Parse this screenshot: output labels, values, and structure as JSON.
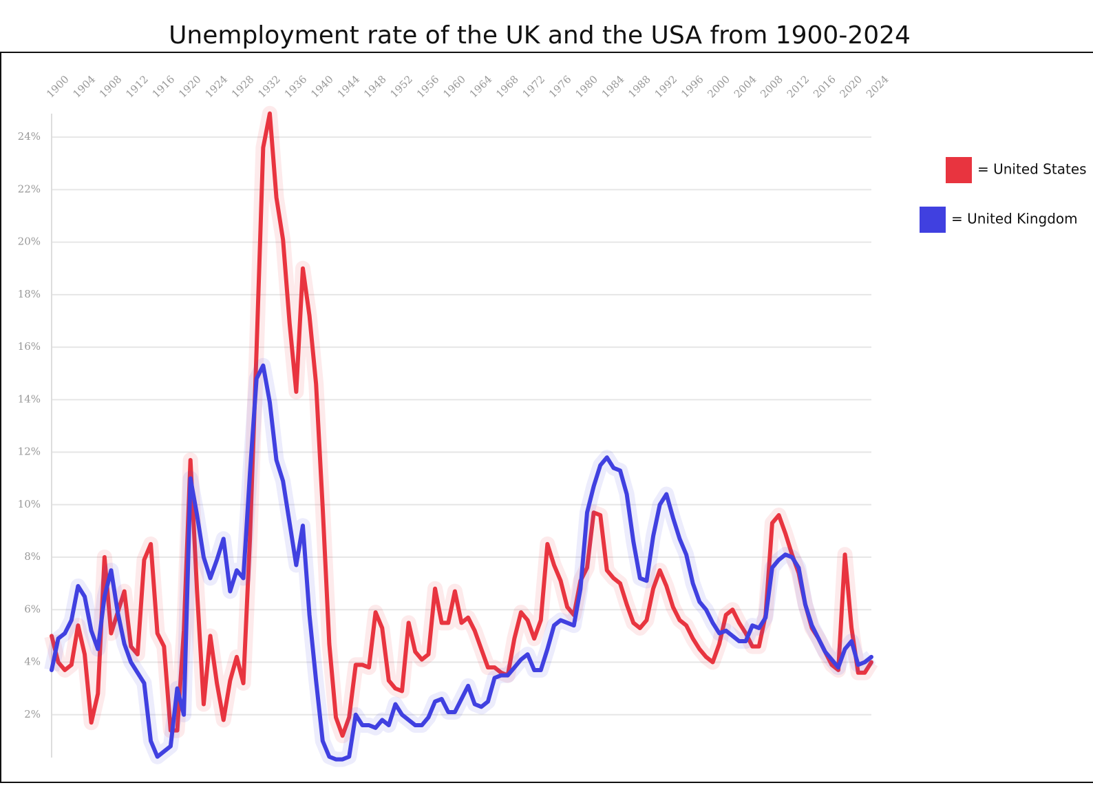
{
  "chart_data": {
    "type": "line",
    "title": "Unemployment rate of the UK and the USA from 1900-2024",
    "x": [
      1900,
      1901,
      1902,
      1903,
      1904,
      1905,
      1906,
      1907,
      1908,
      1909,
      1910,
      1911,
      1912,
      1913,
      1914,
      1915,
      1916,
      1917,
      1918,
      1919,
      1920,
      1921,
      1922,
      1923,
      1924,
      1925,
      1926,
      1927,
      1928,
      1929,
      1930,
      1931,
      1932,
      1933,
      1934,
      1935,
      1936,
      1937,
      1938,
      1939,
      1940,
      1941,
      1942,
      1943,
      1944,
      1945,
      1946,
      1947,
      1948,
      1949,
      1950,
      1951,
      1952,
      1953,
      1954,
      1955,
      1956,
      1957,
      1958,
      1959,
      1960,
      1961,
      1962,
      1963,
      1964,
      1965,
      1966,
      1967,
      1968,
      1969,
      1970,
      1971,
      1972,
      1973,
      1974,
      1975,
      1976,
      1977,
      1978,
      1979,
      1980,
      1981,
      1982,
      1983,
      1984,
      1985,
      1986,
      1987,
      1988,
      1989,
      1990,
      1991,
      1992,
      1993,
      1994,
      1995,
      1996,
      1997,
      1998,
      1999,
      2000,
      2001,
      2002,
      2003,
      2004,
      2005,
      2006,
      2007,
      2008,
      2009,
      2010,
      2011,
      2012,
      2013,
      2014,
      2015,
      2016,
      2017,
      2018,
      2019,
      2020,
      2021,
      2022,
      2023,
      2024
    ],
    "series": [
      {
        "name": "= United States",
        "color": "#e8343f",
        "values": [
          5.0,
          4.0,
          3.7,
          3.9,
          5.4,
          4.3,
          1.7,
          2.8,
          8.0,
          5.1,
          5.9,
          6.7,
          4.6,
          4.3,
          7.9,
          8.5,
          5.1,
          4.6,
          1.4,
          1.4,
          5.2,
          11.7,
          6.7,
          2.4,
          5.0,
          3.2,
          1.8,
          3.3,
          4.2,
          3.2,
          8.7,
          15.9,
          23.6,
          24.9,
          21.7,
          20.1,
          16.9,
          14.3,
          19.0,
          17.2,
          14.6,
          9.9,
          4.7,
          1.9,
          1.2,
          1.9,
          3.9,
          3.9,
          3.8,
          5.9,
          5.3,
          3.3,
          3.0,
          2.9,
          5.5,
          4.4,
          4.1,
          4.3,
          6.8,
          5.5,
          5.5,
          6.7,
          5.5,
          5.7,
          5.2,
          4.5,
          3.8,
          3.8,
          3.6,
          3.5,
          4.9,
          5.9,
          5.6,
          4.9,
          5.6,
          8.5,
          7.7,
          7.1,
          6.1,
          5.8,
          7.1,
          7.6,
          9.7,
          9.6,
          7.5,
          7.2,
          7.0,
          6.2,
          5.5,
          5.3,
          5.6,
          6.8,
          7.5,
          6.9,
          6.1,
          5.6,
          5.4,
          4.9,
          4.5,
          4.2,
          4.0,
          4.7,
          5.8,
          6.0,
          5.5,
          5.1,
          4.6,
          4.6,
          5.8,
          9.3,
          9.6,
          8.9,
          8.1,
          7.4,
          6.2,
          5.3,
          4.9,
          4.4,
          3.9,
          3.7,
          8.1,
          5.3,
          3.6,
          3.6,
          4.0
        ]
      },
      {
        "name": "= United Kingdom",
        "color": "#4040e0",
        "values": [
          3.7,
          4.9,
          5.1,
          5.6,
          6.9,
          6.5,
          5.2,
          4.5,
          6.5,
          7.5,
          5.9,
          4.7,
          4.0,
          3.6,
          3.2,
          1.0,
          0.4,
          0.6,
          0.8,
          3.0,
          2.0,
          11.0,
          9.6,
          8.0,
          7.2,
          7.9,
          8.7,
          6.7,
          7.5,
          7.2,
          11.2,
          14.8,
          15.3,
          13.9,
          11.7,
          10.9,
          9.3,
          7.7,
          9.2,
          5.8,
          3.3,
          1.0,
          0.4,
          0.3,
          0.3,
          0.4,
          2.0,
          1.6,
          1.6,
          1.5,
          1.8,
          1.6,
          2.4,
          2.0,
          1.8,
          1.6,
          1.6,
          1.9,
          2.5,
          2.6,
          2.1,
          2.1,
          2.6,
          3.1,
          2.4,
          2.3,
          2.5,
          3.4,
          3.5,
          3.5,
          3.8,
          4.1,
          4.3,
          3.7,
          3.7,
          4.5,
          5.4,
          5.6,
          5.5,
          5.4,
          6.8,
          9.7,
          10.7,
          11.5,
          11.8,
          11.4,
          11.3,
          10.4,
          8.6,
          7.2,
          7.1,
          8.8,
          10.0,
          10.4,
          9.5,
          8.7,
          8.1,
          7.0,
          6.3,
          6.0,
          5.5,
          5.1,
          5.2,
          5.0,
          4.8,
          4.8,
          5.4,
          5.3,
          5.7,
          7.6,
          7.9,
          8.1,
          8.0,
          7.6,
          6.2,
          5.4,
          4.9,
          4.4,
          4.1,
          3.8,
          4.5,
          4.8,
          3.9,
          4.0,
          4.2
        ]
      }
    ],
    "xlim": [
      1900,
      2024
    ],
    "xticks": [
      1900,
      1904,
      1908,
      1912,
      1916,
      1920,
      1924,
      1928,
      1932,
      1936,
      1940,
      1944,
      1948,
      1952,
      1956,
      1960,
      1964,
      1968,
      1972,
      1976,
      1980,
      1984,
      1988,
      1992,
      1996,
      2000,
      2004,
      2008,
      2012,
      2016,
      2020,
      2024
    ],
    "ylim": [
      0,
      25
    ],
    "yticks": [
      {
        "value": 2,
        "label": "2%"
      },
      {
        "value": 4,
        "label": "4%"
      },
      {
        "value": 6,
        "label": "6%"
      },
      {
        "value": 8,
        "label": "8%"
      },
      {
        "value": 10,
        "label": "10%"
      },
      {
        "value": 12,
        "label": "12%"
      },
      {
        "value": 14,
        "label": "14%"
      },
      {
        "value": 16,
        "label": "16%"
      },
      {
        "value": 18,
        "label": "18%"
      },
      {
        "value": 20,
        "label": "20%"
      },
      {
        "value": 22,
        "label": "22%"
      },
      {
        "value": 24,
        "label": "24%"
      }
    ],
    "grid": true,
    "legend": "right"
  }
}
